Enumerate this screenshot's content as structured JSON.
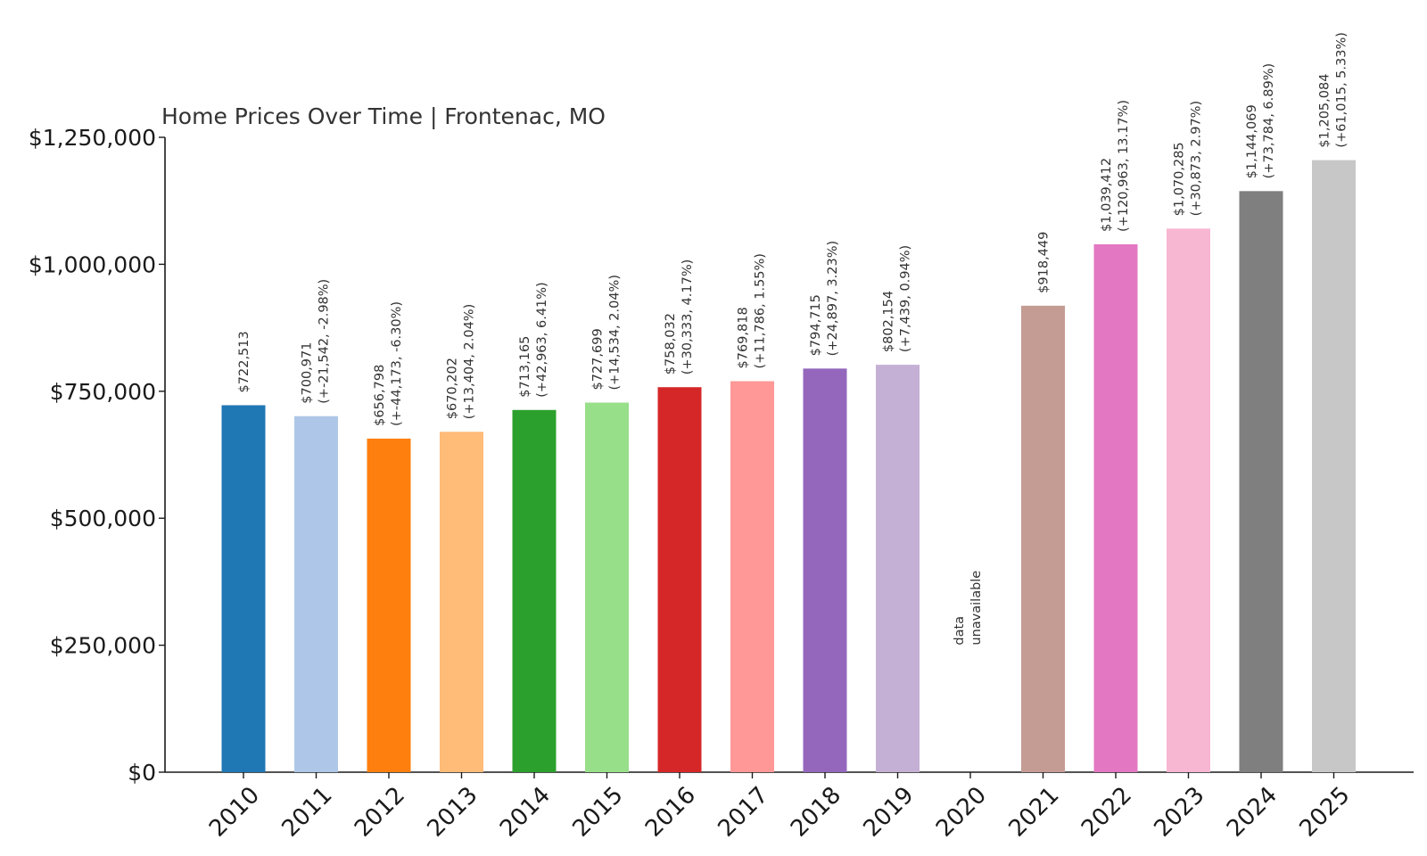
{
  "chart_data": {
    "type": "bar",
    "title": "Home Prices Over Time | Frontenac, MO",
    "xlabel": "",
    "ylabel": "",
    "ylim": [
      0,
      1250000
    ],
    "yticks": [
      "$0",
      "$250,000",
      "$500,000",
      "$750,000",
      "$1,000,000",
      "$1,250,000"
    ],
    "ytick_values": [
      0,
      250000,
      500000,
      750000,
      1000000,
      1250000
    ],
    "grid": false,
    "legend": "none",
    "categories": [
      "2010",
      "2011",
      "2012",
      "2013",
      "2014",
      "2015",
      "2016",
      "2017",
      "2018",
      "2019",
      "2020",
      "2021",
      "2022",
      "2023",
      "2024",
      "2025"
    ],
    "values": [
      722513,
      700971,
      656798,
      670202,
      713165,
      727699,
      758032,
      769818,
      794715,
      802154,
      null,
      918449,
      1039412,
      1070285,
      1144069,
      1205084
    ],
    "value_labels": [
      "$722,513",
      "$700,971",
      "$656,798",
      "$670,202",
      "$713,165",
      "$727,699",
      "$758,032",
      "$769,818",
      "$794,715",
      "$802,154",
      "",
      "$918,449",
      "$1,039,412",
      "$1,070,285",
      "$1,144,069",
      "$1,205,084"
    ],
    "change_labels": [
      "",
      "(+-21,542, -2.98%)",
      "(+-44,173, -6.30%)",
      "(+13,404, 2.04%)",
      "(+42,963, 6.41%)",
      "(+14,534, 2.04%)",
      "(+30,333, 4.17%)",
      "(+11,786, 1.55%)",
      "(+24,897, 3.23%)",
      "(+7,439, 0.94%)",
      "",
      "",
      "(+120,963, 13.17%)",
      "(+30,873, 2.97%)",
      "(+73,784, 6.89%)",
      "(+61,015, 5.33%)"
    ],
    "missing_label": [
      "data",
      "unavailable"
    ],
    "colors": [
      "#1f77b4",
      "#aec7e8",
      "#ff7f0e",
      "#ffbb78",
      "#2ca02c",
      "#98df8a",
      "#d62728",
      "#ff9896",
      "#9467bd",
      "#c5b0d5",
      "#8c564b",
      "#c49c94",
      "#e377c2",
      "#f7b6d2",
      "#7f7f7f",
      "#c7c7c7"
    ]
  }
}
